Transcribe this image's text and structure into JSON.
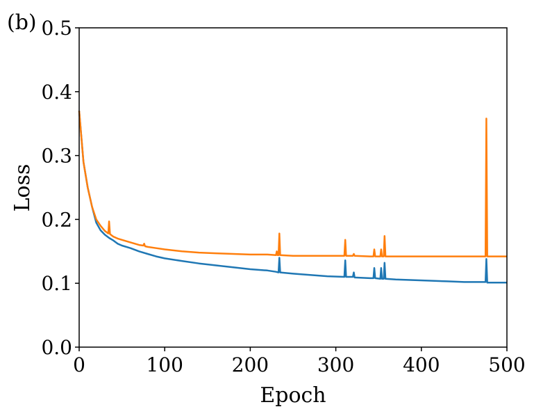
{
  "panel_label": "(b)",
  "chart_data": {
    "type": "line",
    "title": "",
    "xlabel": "Epoch",
    "ylabel": "Loss",
    "xlim": [
      0,
      500
    ],
    "ylim": [
      0.0,
      0.5
    ],
    "xticks": [
      0,
      100,
      200,
      300,
      400,
      500
    ],
    "yticks": [
      0.0,
      0.1,
      0.2,
      0.3,
      0.4,
      0.5
    ],
    "xtick_labels": [
      "0",
      "100",
      "200",
      "300",
      "400",
      "500"
    ],
    "ytick_labels": [
      "0.0",
      "0.1",
      "0.2",
      "0.3",
      "0.4",
      "0.5"
    ],
    "grid": false,
    "legend": "none",
    "series": [
      {
        "color": "#1f77b4",
        "points": [
          [
            0,
            0.37
          ],
          [
            5,
            0.29
          ],
          [
            10,
            0.25
          ],
          [
            15,
            0.22
          ],
          [
            20,
            0.195
          ],
          [
            25,
            0.183
          ],
          [
            30,
            0.176
          ],
          [
            35,
            0.171
          ],
          [
            40,
            0.167
          ],
          [
            45,
            0.162
          ],
          [
            50,
            0.159
          ],
          [
            60,
            0.155
          ],
          [
            70,
            0.15
          ],
          [
            80,
            0.146
          ],
          [
            90,
            0.142
          ],
          [
            100,
            0.139
          ],
          [
            120,
            0.135
          ],
          [
            140,
            0.131
          ],
          [
            160,
            0.128
          ],
          [
            180,
            0.125
          ],
          [
            200,
            0.122
          ],
          [
            220,
            0.12
          ],
          [
            230,
            0.118
          ],
          [
            233,
            0.117
          ],
          [
            234,
            0.14
          ],
          [
            235,
            0.117
          ],
          [
            250,
            0.115
          ],
          [
            270,
            0.113
          ],
          [
            290,
            0.111
          ],
          [
            310,
            0.11
          ],
          [
            311,
            0.136
          ],
          [
            312,
            0.11
          ],
          [
            320,
            0.11
          ],
          [
            321,
            0.117
          ],
          [
            322,
            0.109
          ],
          [
            340,
            0.108
          ],
          [
            344,
            0.108
          ],
          [
            345,
            0.124
          ],
          [
            346,
            0.108
          ],
          [
            352,
            0.107
          ],
          [
            353,
            0.124
          ],
          [
            354,
            0.107
          ],
          [
            356,
            0.107
          ],
          [
            357,
            0.132
          ],
          [
            358,
            0.107
          ],
          [
            370,
            0.106
          ],
          [
            390,
            0.105
          ],
          [
            410,
            0.104
          ],
          [
            430,
            0.103
          ],
          [
            450,
            0.102
          ],
          [
            475,
            0.102
          ],
          [
            476,
            0.138
          ],
          [
            477,
            0.101
          ],
          [
            490,
            0.101
          ],
          [
            500,
            0.101
          ]
        ]
      },
      {
        "color": "#ff7f0e",
        "points": [
          [
            0,
            0.37
          ],
          [
            5,
            0.29
          ],
          [
            10,
            0.25
          ],
          [
            15,
            0.22
          ],
          [
            20,
            0.2
          ],
          [
            25,
            0.19
          ],
          [
            30,
            0.182
          ],
          [
            34,
            0.178
          ],
          [
            35,
            0.197
          ],
          [
            36,
            0.177
          ],
          [
            40,
            0.173
          ],
          [
            45,
            0.17
          ],
          [
            50,
            0.168
          ],
          [
            60,
            0.164
          ],
          [
            70,
            0.16
          ],
          [
            75,
            0.159
          ],
          [
            76,
            0.162
          ],
          [
            77,
            0.158
          ],
          [
            80,
            0.157
          ],
          [
            90,
            0.155
          ],
          [
            100,
            0.153
          ],
          [
            120,
            0.15
          ],
          [
            140,
            0.148
          ],
          [
            160,
            0.147
          ],
          [
            180,
            0.146
          ],
          [
            200,
            0.145
          ],
          [
            220,
            0.145
          ],
          [
            230,
            0.144
          ],
          [
            231,
            0.15
          ],
          [
            232,
            0.144
          ],
          [
            233,
            0.144
          ],
          [
            234,
            0.178
          ],
          [
            235,
            0.144
          ],
          [
            250,
            0.143
          ],
          [
            270,
            0.143
          ],
          [
            290,
            0.143
          ],
          [
            310,
            0.143
          ],
          [
            311,
            0.168
          ],
          [
            312,
            0.143
          ],
          [
            320,
            0.143
          ],
          [
            321,
            0.146
          ],
          [
            322,
            0.143
          ],
          [
            340,
            0.142
          ],
          [
            344,
            0.142
          ],
          [
            345,
            0.153
          ],
          [
            346,
            0.142
          ],
          [
            352,
            0.142
          ],
          [
            353,
            0.153
          ],
          [
            354,
            0.142
          ],
          [
            356,
            0.142
          ],
          [
            357,
            0.174
          ],
          [
            358,
            0.142
          ],
          [
            370,
            0.142
          ],
          [
            390,
            0.142
          ],
          [
            410,
            0.142
          ],
          [
            430,
            0.142
          ],
          [
            450,
            0.142
          ],
          [
            475,
            0.142
          ],
          [
            476,
            0.358
          ],
          [
            477,
            0.142
          ],
          [
            490,
            0.142
          ],
          [
            500,
            0.142
          ]
        ]
      }
    ]
  }
}
